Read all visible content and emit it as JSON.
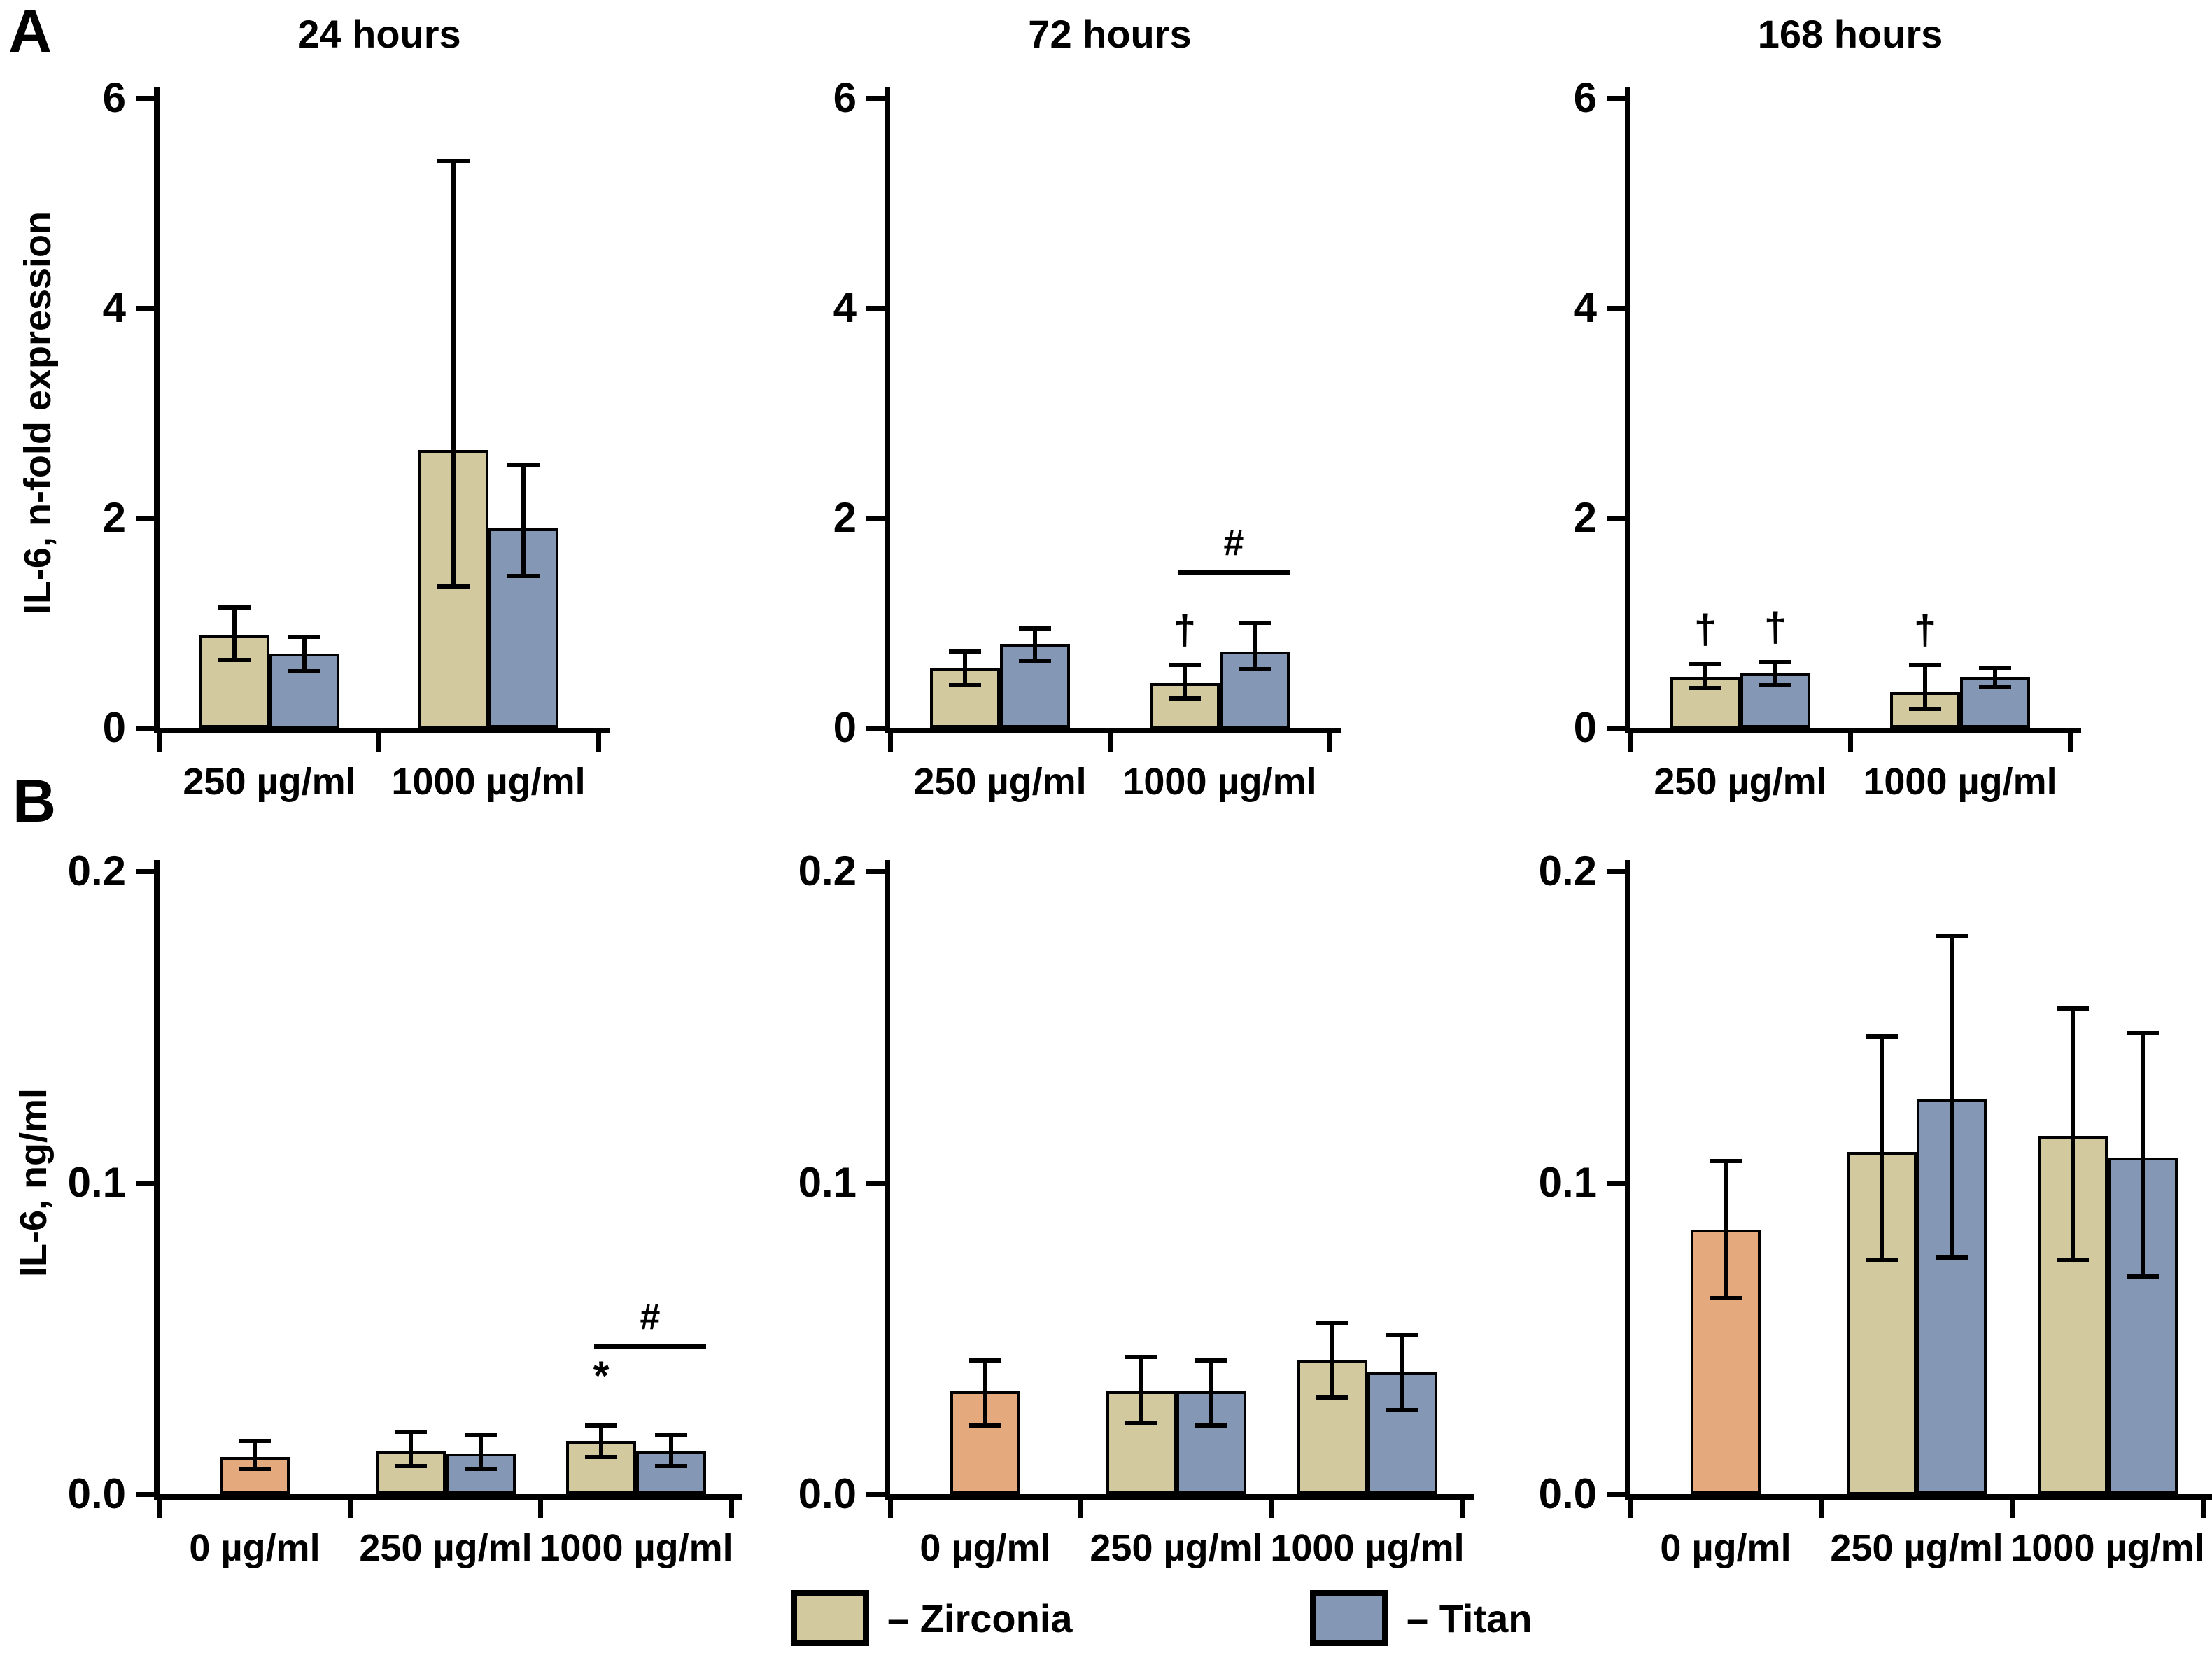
{
  "figure": {
    "panel_label_a": "A",
    "panel_label_b": "B",
    "row_a_ylabel": "IL-6, n-fold expression",
    "row_b_ylabel": "IL-6, ng/ml",
    "background": "#ffffff"
  },
  "colors": {
    "zirconia": "#d3c99e",
    "titan": "#8497b5",
    "control": "#e4a97d",
    "axis": "#000000"
  },
  "legend": {
    "items": [
      {
        "series": "zirconia",
        "label": "– Zirconia",
        "color": "#d3c99e"
      },
      {
        "series": "titan",
        "label": "– Titan",
        "color": "#8497b5"
      }
    ]
  },
  "chart_data": [
    {
      "id": "a-24h",
      "row": "A",
      "type": "bar",
      "title": "24 hours",
      "ylabel": "IL-6, n-fold expression",
      "ylim": [
        0,
        6
      ],
      "grid": false,
      "yticks": [
        {
          "v": 0,
          "label": "0"
        },
        {
          "v": 2,
          "label": "2"
        },
        {
          "v": 4,
          "label": "4"
        },
        {
          "v": 6,
          "label": "6"
        }
      ],
      "groups": [
        {
          "label": "250 µg/ml",
          "bars": [
            {
              "series": "zirconia",
              "value": 0.88,
              "err_hi": 1.15,
              "err_lo": 0.65
            },
            {
              "series": "titan",
              "value": 0.71,
              "err_hi": 0.87,
              "err_lo": 0.54
            }
          ]
        },
        {
          "label": "1000 µg/ml",
          "bars": [
            {
              "series": "zirconia",
              "value": 2.65,
              "err_hi": 5.4,
              "err_lo": 1.35
            },
            {
              "series": "titan",
              "value": 1.9,
              "err_hi": 2.5,
              "err_lo": 1.45
            }
          ]
        }
      ]
    },
    {
      "id": "a-72h",
      "row": "A",
      "type": "bar",
      "title": "72 hours",
      "ylabel": "IL-6, n-fold expression",
      "ylim": [
        0,
        6
      ],
      "grid": false,
      "yticks": [
        {
          "v": 0,
          "label": "0"
        },
        {
          "v": 2,
          "label": "2"
        },
        {
          "v": 4,
          "label": "4"
        },
        {
          "v": 6,
          "label": "6"
        }
      ],
      "groups": [
        {
          "label": "250 µg/ml",
          "bars": [
            {
              "series": "zirconia",
              "value": 0.57,
              "err_hi": 0.73,
              "err_lo": 0.41
            },
            {
              "series": "titan",
              "value": 0.8,
              "err_hi": 0.95,
              "err_lo": 0.64
            }
          ]
        },
        {
          "label": "1000 µg/ml",
          "bars": [
            {
              "series": "zirconia",
              "value": 0.43,
              "err_hi": 0.6,
              "err_lo": 0.28,
              "sym": "†"
            },
            {
              "series": "titan",
              "value": 0.73,
              "err_hi": 1.0,
              "err_lo": 0.56
            }
          ]
        }
      ],
      "bracket": {
        "group": 1,
        "y": 1.5,
        "label": "#"
      }
    },
    {
      "id": "a-168h",
      "row": "A",
      "type": "bar",
      "title": "168 hours",
      "ylabel": "IL-6, n-fold expression",
      "ylim": [
        0,
        6
      ],
      "grid": false,
      "yticks": [
        {
          "v": 0,
          "label": "0"
        },
        {
          "v": 2,
          "label": "2"
        },
        {
          "v": 4,
          "label": "4"
        },
        {
          "v": 6,
          "label": "6"
        }
      ],
      "groups": [
        {
          "label": "250 µg/ml",
          "bars": [
            {
              "series": "zirconia",
              "value": 0.49,
              "err_hi": 0.61,
              "err_lo": 0.38,
              "sym": "†"
            },
            {
              "series": "titan",
              "value": 0.52,
              "err_hi": 0.63,
              "err_lo": 0.41,
              "sym": "†"
            }
          ]
        },
        {
          "label": "1000 µg/ml",
          "bars": [
            {
              "series": "zirconia",
              "value": 0.34,
              "err_hi": 0.6,
              "err_lo": 0.18,
              "sym": "†"
            },
            {
              "series": "titan",
              "value": 0.48,
              "err_hi": 0.57,
              "err_lo": 0.39
            }
          ]
        }
      ]
    },
    {
      "id": "b-24h",
      "row": "B",
      "type": "bar",
      "title": "",
      "ylabel": "IL-6, ng/ml",
      "ylim": [
        0,
        0.2
      ],
      "grid": false,
      "yticks": [
        {
          "v": 0,
          "label": "0.0"
        },
        {
          "v": 0.1,
          "label": "0.1"
        },
        {
          "v": 0.2,
          "label": "0.2"
        }
      ],
      "groups": [
        {
          "label": "0 µg/ml",
          "bars": [
            {
              "series": "control",
              "value": 0.012,
              "err_hi": 0.017,
              "err_lo": 0.008
            }
          ]
        },
        {
          "label": "250 µg/ml",
          "bars": [
            {
              "series": "zirconia",
              "value": 0.014,
              "err_hi": 0.02,
              "err_lo": 0.009
            },
            {
              "series": "titan",
              "value": 0.013,
              "err_hi": 0.019,
              "err_lo": 0.008
            }
          ]
        },
        {
          "label": "1000 µg/ml",
          "bars": [
            {
              "series": "zirconia",
              "value": 0.017,
              "err_hi": 0.022,
              "err_lo": 0.012,
              "sym": "*"
            },
            {
              "series": "titan",
              "value": 0.014,
              "err_hi": 0.019,
              "err_lo": 0.009
            }
          ]
        }
      ],
      "bracket": {
        "group": 2,
        "y": 0.048,
        "label": "#"
      }
    },
    {
      "id": "b-72h",
      "row": "B",
      "type": "bar",
      "title": "",
      "ylabel": "IL-6, ng/ml",
      "ylim": [
        0,
        0.2
      ],
      "grid": false,
      "yticks": [
        {
          "v": 0,
          "label": "0.0"
        },
        {
          "v": 0.1,
          "label": "0.1"
        },
        {
          "v": 0.2,
          "label": "0.2"
        }
      ],
      "groups": [
        {
          "label": "0 µg/ml",
          "bars": [
            {
              "series": "control",
              "value": 0.033,
              "err_hi": 0.043,
              "err_lo": 0.022
            }
          ]
        },
        {
          "label": "250 µg/ml",
          "bars": [
            {
              "series": "zirconia",
              "value": 0.033,
              "err_hi": 0.044,
              "err_lo": 0.023
            },
            {
              "series": "titan",
              "value": 0.033,
              "err_hi": 0.043,
              "err_lo": 0.022
            }
          ]
        },
        {
          "label": "1000 µg/ml",
          "bars": [
            {
              "series": "zirconia",
              "value": 0.043,
              "err_hi": 0.055,
              "err_lo": 0.031
            },
            {
              "series": "titan",
              "value": 0.039,
              "err_hi": 0.051,
              "err_lo": 0.027
            }
          ]
        }
      ]
    },
    {
      "id": "b-168h",
      "row": "B",
      "type": "bar",
      "title": "",
      "ylabel": "IL-6, ng/ml",
      "ylim": [
        0,
        0.2
      ],
      "grid": false,
      "yticks": [
        {
          "v": 0,
          "label": "0.0"
        },
        {
          "v": 0.1,
          "label": "0.1"
        },
        {
          "v": 0.2,
          "label": "0.2"
        }
      ],
      "groups": [
        {
          "label": "0 µg/ml",
          "bars": [
            {
              "series": "control",
              "value": 0.085,
              "err_hi": 0.107,
              "err_lo": 0.063
            }
          ]
        },
        {
          "label": "250 µg/ml",
          "bars": [
            {
              "series": "zirconia",
              "value": 0.11,
              "err_hi": 0.147,
              "err_lo": 0.075
            },
            {
              "series": "titan",
              "value": 0.127,
              "err_hi": 0.179,
              "err_lo": 0.076
            }
          ]
        },
        {
          "label": "1000 µg/ml",
          "bars": [
            {
              "series": "zirconia",
              "value": 0.115,
              "err_hi": 0.156,
              "err_lo": 0.075
            },
            {
              "series": "titan",
              "value": 0.108,
              "err_hi": 0.148,
              "err_lo": 0.07
            }
          ]
        }
      ]
    }
  ]
}
